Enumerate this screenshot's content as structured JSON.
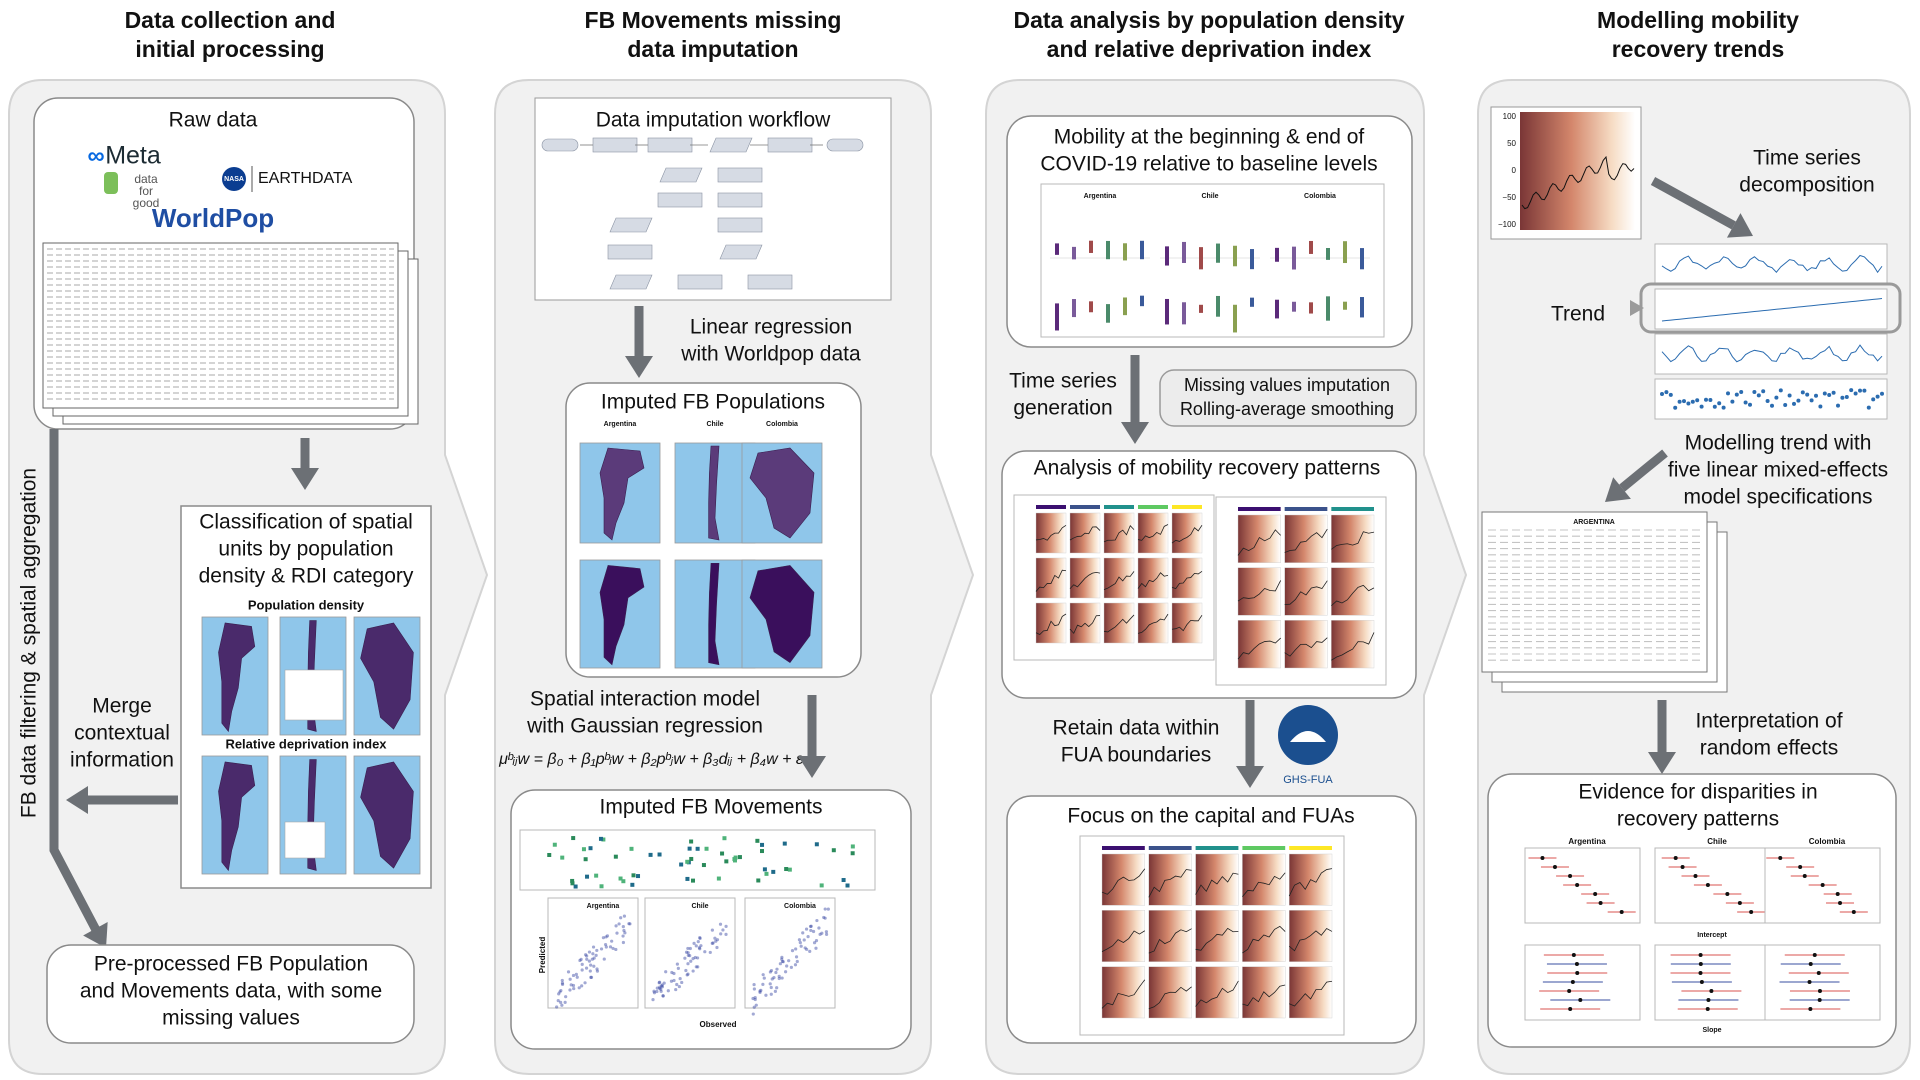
{
  "headers": [
    [
      "Data collection and",
      "initial processing"
    ],
    [
      "FB Movements missing",
      "data imputation"
    ],
    [
      "Data analysis by population density",
      "and relative deprivation index"
    ],
    [
      "Modelling mobility",
      "recovery trends"
    ]
  ],
  "raw_data": {
    "title": "Raw data",
    "meta": "Meta",
    "data_for_good": [
      "data",
      "for",
      "good"
    ],
    "nasa": "NASA",
    "earthdata": "EARTHDATA",
    "worldpop": "WorldPop"
  },
  "side_label": "FB data filtering & spatial aggregation",
  "classification": {
    "title": [
      "Classification of spatial",
      "units by population",
      "density & RDI category"
    ],
    "maps": [
      "Population density",
      "Relative deprivation index"
    ]
  },
  "merge_label": [
    "Merge",
    "contextual",
    "information"
  ],
  "preprocessed": [
    "Pre-processed FB Population",
    "and Movements data, with some",
    "missing values"
  ],
  "workflow_title": "Data imputation workflow",
  "linear_regression": [
    "Linear regression",
    "with Worldpop data"
  ],
  "imputed_populations": {
    "title": "Imputed FB Populations",
    "countries": [
      "Argentina",
      "Chile",
      "Colombia"
    ]
  },
  "spatial_model": [
    "Spatial interaction model",
    "with Gaussian regression"
  ],
  "formula": "μᵇᵢⱼw = β₀ + β₁pᵇᵢw + β₂pᵇⱼw + β₃dᵢⱼ + β₄w + ε",
  "imputed_movements": {
    "title": "Imputed FB Movements",
    "countries": [
      "Argentina",
      "Chile",
      "Colombia"
    ],
    "x_label": "Observed",
    "y_label": "Predicted"
  },
  "mobility": {
    "title": [
      "Mobility at the beginning & end of",
      "COVID-19 relative to baseline levels"
    ],
    "countries": [
      "Argentina",
      "Chile",
      "Colombia"
    ]
  },
  "time_series_generation": [
    "Time series",
    "generation"
  ],
  "smoothing": [
    "Missing values imputation",
    "Rolling-average smoothing"
  ],
  "analysis_title": "Analysis of mobility recovery patterns",
  "fua_label": [
    "Retain data within",
    "FUA boundaries"
  ],
  "ghs_fua": "GHS-FUA",
  "focus_title": "Focus on the capital and FUAs",
  "ts_ticks": [
    "100",
    "50",
    "0",
    "−50",
    "−100"
  ],
  "decomposition": [
    "Time series",
    "decomposition"
  ],
  "trend": "Trend",
  "modelling": [
    "Modelling trend with",
    "five linear mixed-effects",
    "model specifications"
  ],
  "table_title": "ARGENTINA",
  "interpretation": [
    "Interpretation of",
    "random effects"
  ],
  "evidence": {
    "title": [
      "Evidence for disparities in",
      "recovery patterns"
    ],
    "countries": [
      "Argentina",
      "Chile",
      "Colombia"
    ],
    "x_labels": [
      "Intercept",
      "Slope"
    ]
  }
}
